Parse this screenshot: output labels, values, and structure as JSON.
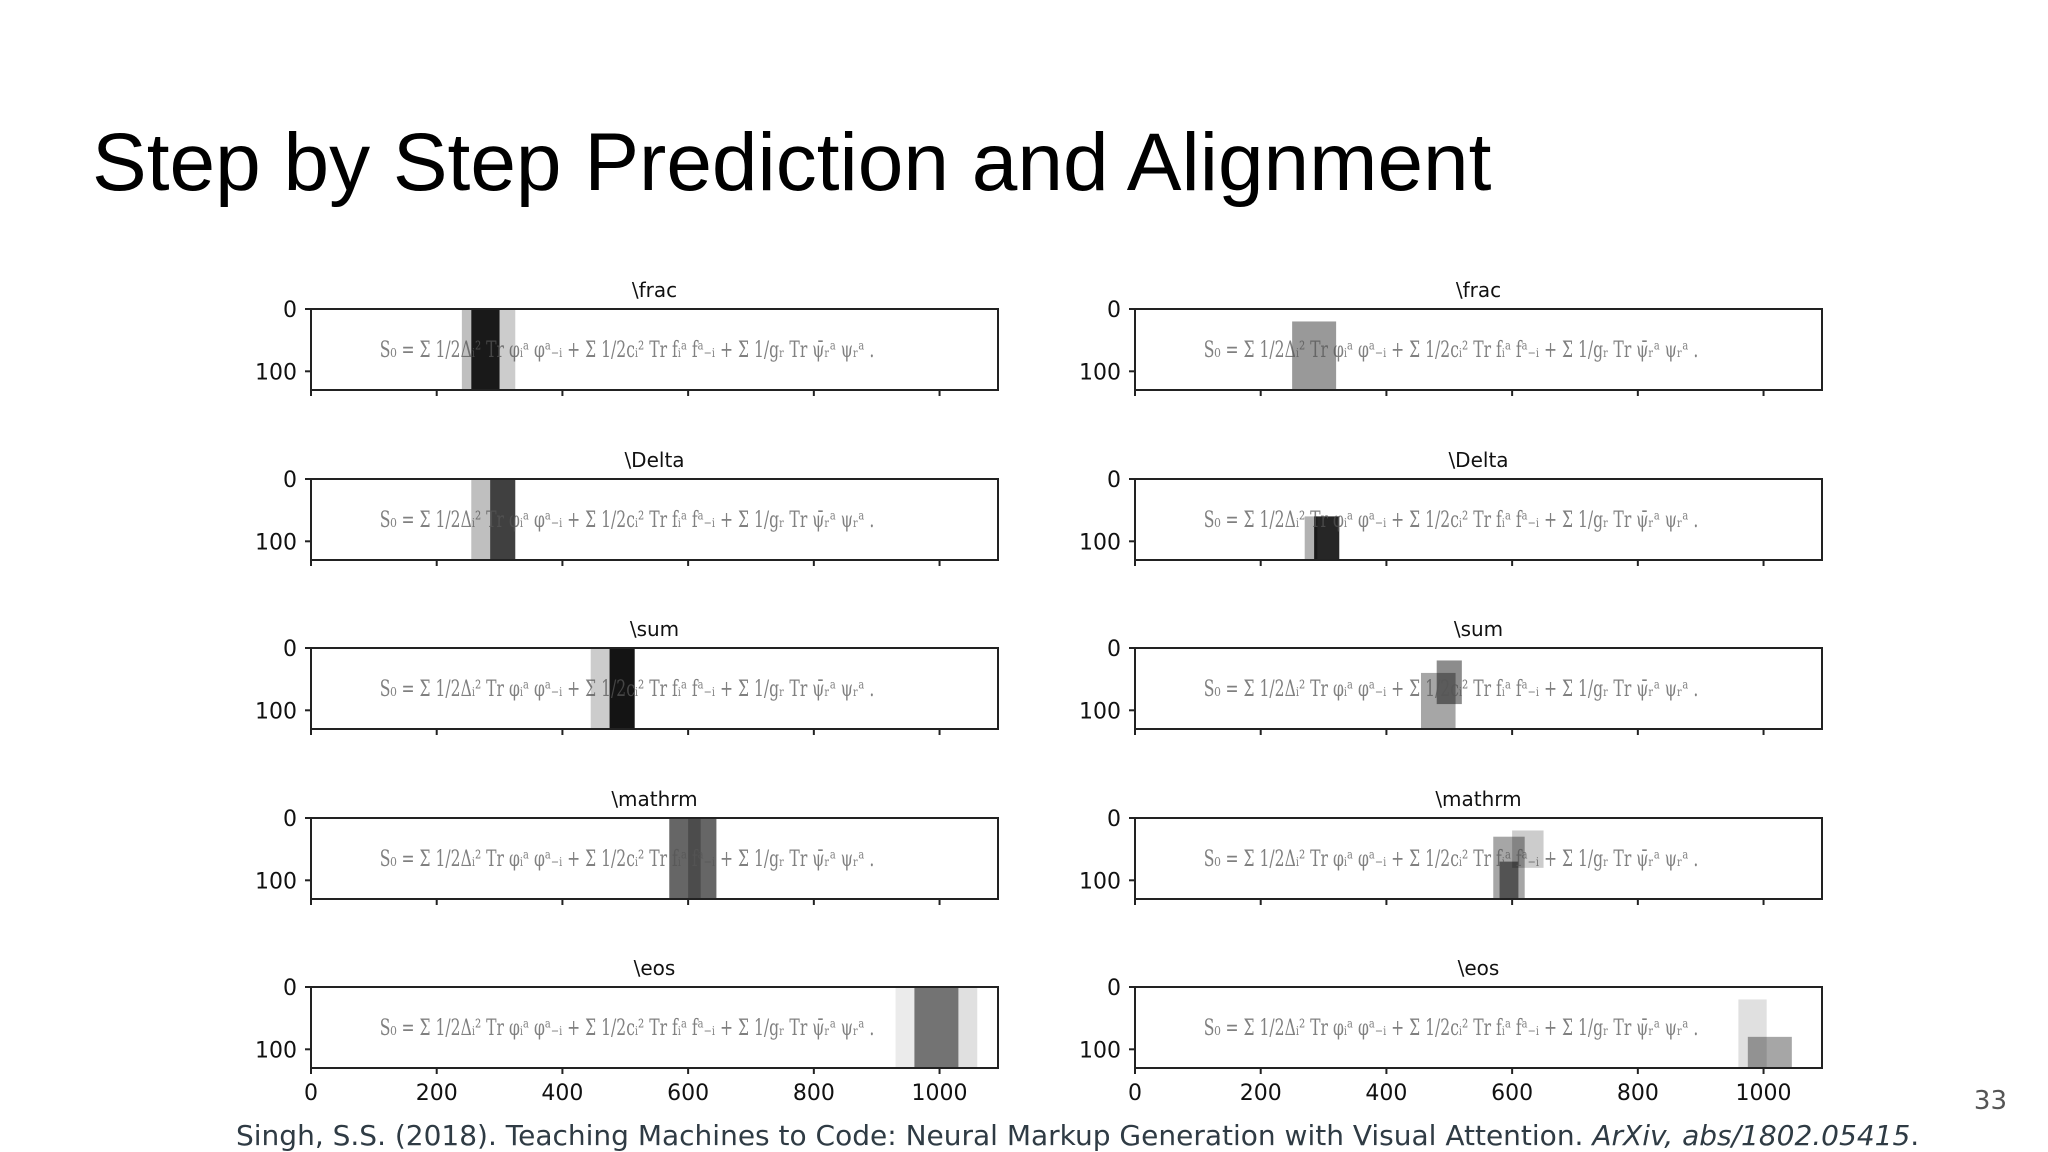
{
  "slide": {
    "title": "Step by Step Prediction and Alignment",
    "page_number": "33"
  },
  "citation": {
    "text": "Singh, S.S. (2018). Teaching Machines to Code: Neural Markup Generation with Visual Attention. ",
    "italic": "ArXiv, abs/1802.05415",
    "end": "."
  },
  "formula_text": "S₀ = Σ 1/2Δᵢ² Tr φᵢᵃ φᵃ₋ᵢ + Σ 1/2cᵢ² Tr fᵢᵃ fᵃ₋ᵢ + Σ 1/gᵣ Tr ψ̄ᵣᵃ ψᵣᵃ .",
  "panels": {
    "x_ticks": [
      "0",
      "200",
      "400",
      "600",
      "800",
      "1000"
    ],
    "y_ticks": [
      "0",
      "100"
    ],
    "columns": [
      {
        "name": "left",
        "rows": [
          {
            "token": "\\frac",
            "attention": [
              {
                "x0": 255,
                "x1": 300,
                "alpha": 0.9
              },
              {
                "x0": 240,
                "x1": 255,
                "alpha": 0.25
              },
              {
                "x0": 300,
                "x1": 325,
                "alpha": 0.2
              }
            ]
          },
          {
            "token": "\\Delta",
            "attention": [
              {
                "x0": 285,
                "x1": 325,
                "alpha": 0.75
              },
              {
                "x0": 255,
                "x1": 285,
                "alpha": 0.25
              }
            ]
          },
          {
            "token": "\\sum",
            "attention": [
              {
                "x0": 475,
                "x1": 515,
                "alpha": 0.92
              },
              {
                "x0": 445,
                "x1": 475,
                "alpha": 0.2
              }
            ]
          },
          {
            "token": "\\mathrm",
            "attention": [
              {
                "x0": 570,
                "x1": 645,
                "alpha": 0.6
              },
              {
                "x0": 600,
                "x1": 620,
                "alpha": 0.25
              }
            ]
          },
          {
            "token": "\\eos",
            "attention": [
              {
                "x0": 960,
                "x1": 1030,
                "alpha": 0.55
              },
              {
                "x0": 1030,
                "x1": 1060,
                "alpha": 0.12
              },
              {
                "x0": 930,
                "x1": 960,
                "alpha": 0.08
              }
            ]
          }
        ]
      },
      {
        "name": "right",
        "rows": [
          {
            "token": "\\frac",
            "attention": [
              {
                "x0": 250,
                "x1": 320,
                "alpha": 0.4,
                "y0": 20,
                "y1": 130
              }
            ]
          },
          {
            "token": "\\Delta",
            "attention": [
              {
                "x0": 285,
                "x1": 325,
                "alpha": 0.85,
                "y0": 60,
                "y1": 130
              },
              {
                "x0": 270,
                "x1": 290,
                "alpha": 0.3,
                "y0": 60,
                "y1": 130
              }
            ]
          },
          {
            "token": "\\sum",
            "attention": [
              {
                "x0": 455,
                "x1": 510,
                "alpha": 0.35,
                "y0": 40,
                "y1": 130
              },
              {
                "x0": 480,
                "x1": 520,
                "alpha": 0.45,
                "y0": 20,
                "y1": 90
              }
            ]
          },
          {
            "token": "\\mathrm",
            "attention": [
              {
                "x0": 570,
                "x1": 620,
                "alpha": 0.35,
                "y0": 30,
                "y1": 130
              },
              {
                "x0": 600,
                "x1": 650,
                "alpha": 0.2,
                "y0": 20,
                "y1": 80
              },
              {
                "x0": 580,
                "x1": 610,
                "alpha": 0.5,
                "y0": 70,
                "y1": 130
              }
            ]
          },
          {
            "token": "\\eos",
            "attention": [
              {
                "x0": 960,
                "x1": 1005,
                "alpha": 0.12,
                "y0": 20,
                "y1": 130
              },
              {
                "x0": 975,
                "x1": 1045,
                "alpha": 0.35,
                "y0": 80,
                "y1": 130
              }
            ]
          }
        ]
      }
    ]
  }
}
